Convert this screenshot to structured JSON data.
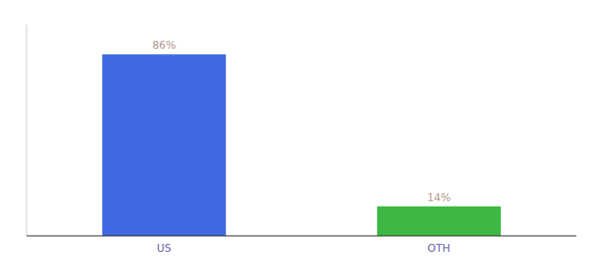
{
  "chart_data": {
    "type": "bar",
    "categories": [
      "US",
      "OTH"
    ],
    "values": [
      86,
      14
    ],
    "value_labels": [
      "86%",
      "14%"
    ],
    "colors": [
      "#4169E1",
      "#3CB843"
    ],
    "ylim": [
      0,
      100
    ],
    "yticks": [],
    "tick_labels": "x",
    "data_labels": true
  }
}
